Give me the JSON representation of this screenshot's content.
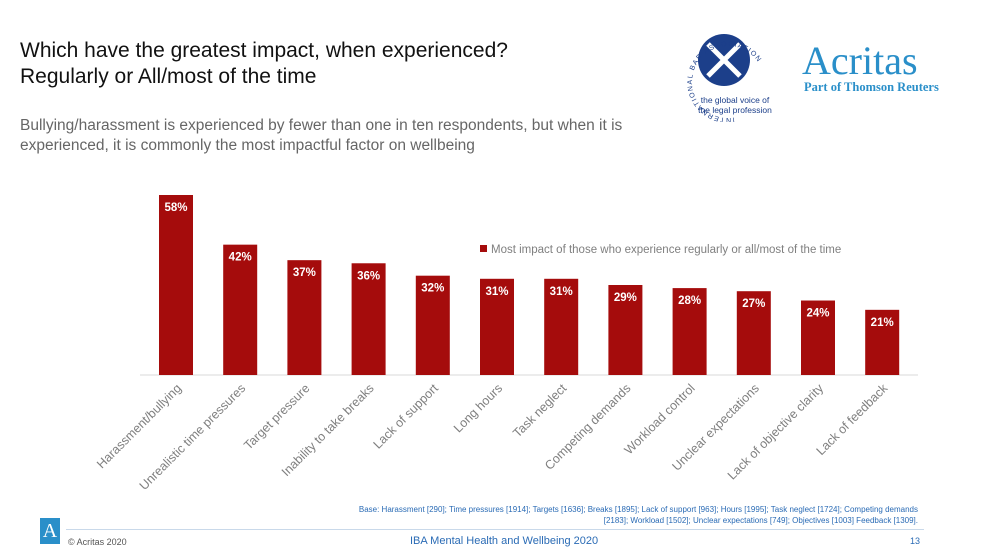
{
  "header": {
    "title_line1": "Which have the greatest impact, when experienced?",
    "title_line2": "Regularly or All/most of the time",
    "subtitle": "Bullying/harassment is experienced by fewer than one in ten respondents, but when it is experienced, it is commonly the most impactful factor on wellbeing"
  },
  "logos": {
    "iba_ring_text": "INTERNATIONAL BAR ASSOCIATION",
    "iba_tagline_1": "the global voice of",
    "iba_tagline_2": "the legal profession",
    "acritas_name": "Acritas",
    "acritas_sub": "Part of Thomson Reuters"
  },
  "chart_data": {
    "type": "bar",
    "categories": [
      "Harassment/bullying",
      "Unrealistic time pressures",
      "Target pressure",
      "Inability to take breaks",
      "Lack of support",
      "Long hours",
      "Task neglect",
      "Competing demands",
      "Workload control",
      "Unclear expectations",
      "Lack of objective clarity",
      "Lack of feedback"
    ],
    "series": [
      {
        "name": "Most impact of those who experience regularly or all/most of the time",
        "values": [
          58,
          42,
          37,
          36,
          32,
          31,
          31,
          29,
          28,
          27,
          24,
          21
        ]
      }
    ],
    "data_labels": [
      "58%",
      "42%",
      "37%",
      "36%",
      "32%",
      "31%",
      "31%",
      "29%",
      "28%",
      "27%",
      "24%",
      "21%"
    ],
    "ylim": [
      0,
      60
    ],
    "legend_position": "top-right",
    "grid": false,
    "bar_color": "#a50c0c"
  },
  "footer": {
    "base_note": "Base: Harassment [290]; Time pressures [1914]; Targets [1636]; Breaks [1895]; Lack of support [963]; Hours [1995]; Task neglect [1724]; Competing demands [2183]; Workload [1502]; Unclear expectations [749]; Objectives [1003] Feedback [1309].",
    "logo_letter": "A",
    "copyright": "© Acritas 2020",
    "center_text": "IBA Mental Health and Wellbeing 2020",
    "page_number": "13"
  }
}
